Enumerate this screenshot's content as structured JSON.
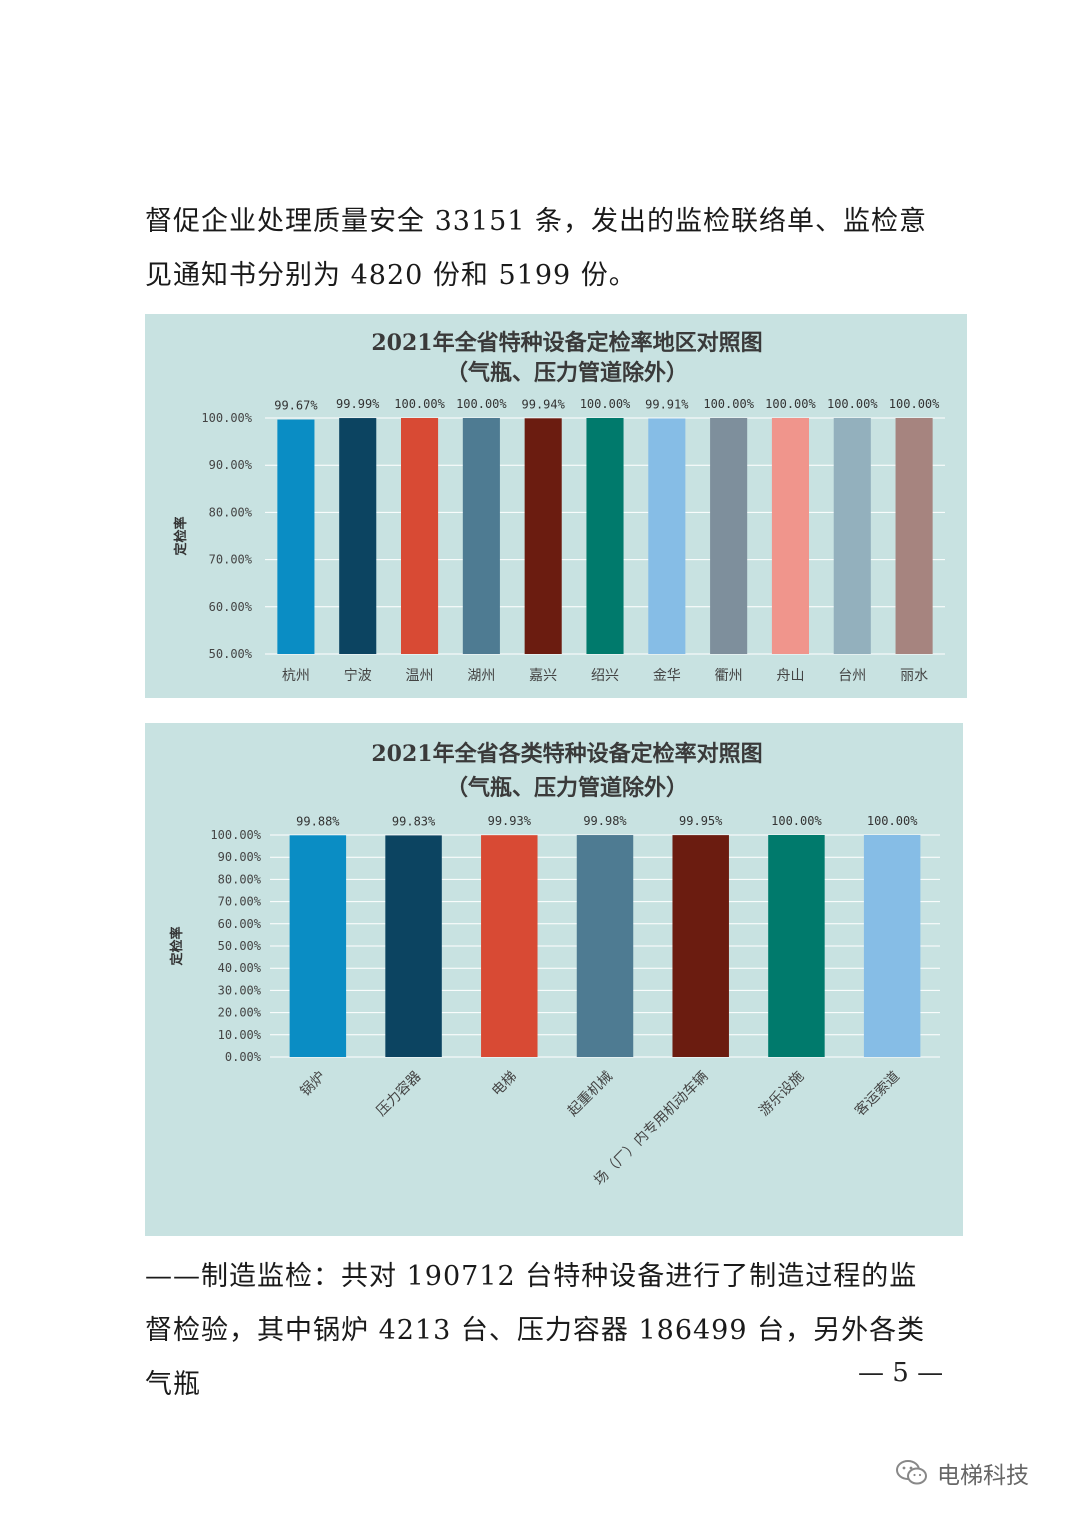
{
  "paragraphs": {
    "top": "督促企业处理质量安全 33151 条，发出的监检联络单、监检意见通知书分别为 4820 份和 5199 份。",
    "bottom": "——制造监检：共对 190712 台特种设备进行了制造过程的监督检验，其中锅炉 4213 台、压力容器 186499 台，另外各类气瓶"
  },
  "page_number": "— 5 —",
  "watermark": {
    "text": "电梯科技",
    "icon": "wechat-icon"
  },
  "colors": {
    "panel": "#c8e2e1",
    "grid": "#ffffff"
  },
  "chart_data": [
    {
      "type": "bar",
      "title": "2021年全省特种设备定检率地区对照图",
      "subtitle": "（气瓶、压力管道除外）",
      "ylabel": "定检率",
      "xlabel": "",
      "ylim": [
        50,
        100
      ],
      "yticks": [
        "100.00%",
        "90.00%",
        "80.00%",
        "70.00%",
        "60.00%",
        "50.00%"
      ],
      "grid": true,
      "categories": [
        "杭州",
        "宁波",
        "温州",
        "湖州",
        "嘉兴",
        "绍兴",
        "金华",
        "衢州",
        "舟山",
        "台州",
        "丽水"
      ],
      "values": [
        99.67,
        99.99,
        100.0,
        100.0,
        99.94,
        100.0,
        99.91,
        100.0,
        100.0,
        100.0,
        100.0
      ],
      "data_labels": [
        "99.67%",
        "99.99%",
        "100.00%",
        "100.00%",
        "99.94%",
        "100.00%",
        "99.91%",
        "100.00%",
        "100.00%",
        "100.00%",
        "100.00%"
      ],
      "bar_colors": [
        "#0a8dc4",
        "#0c4461",
        "#d84a34",
        "#4e7b92",
        "#6b1c10",
        "#007a6c",
        "#86bde6",
        "#7e8f9c",
        "#f0958c",
        "#93b0bd",
        "#a6847f"
      ]
    },
    {
      "type": "bar",
      "title": "2021年全省各类特种设备定检率对照图",
      "subtitle": "（气瓶、压力管道除外）",
      "ylabel": "定检率",
      "xlabel": "",
      "ylim": [
        0,
        100
      ],
      "yticks": [
        "100.00%",
        "90.00%",
        "80.00%",
        "70.00%",
        "60.00%",
        "50.00%",
        "40.00%",
        "30.00%",
        "20.00%",
        "10.00%",
        "0.00%"
      ],
      "grid": true,
      "categories": [
        "锅炉",
        "压力容器",
        "电梯",
        "起重机械",
        "场（厂）内专用机动车辆",
        "游乐设施",
        "客运索道"
      ],
      "values": [
        99.88,
        99.83,
        99.93,
        99.98,
        99.95,
        100.0,
        100.0
      ],
      "data_labels": [
        "99.88%",
        "99.83%",
        "99.93%",
        "99.98%",
        "99.95%",
        "100.00%",
        "100.00%"
      ],
      "bar_colors": [
        "#0a8dc4",
        "#0c4461",
        "#d84a34",
        "#4e7b92",
        "#6b1c10",
        "#007a6c",
        "#86bde6"
      ]
    }
  ]
}
